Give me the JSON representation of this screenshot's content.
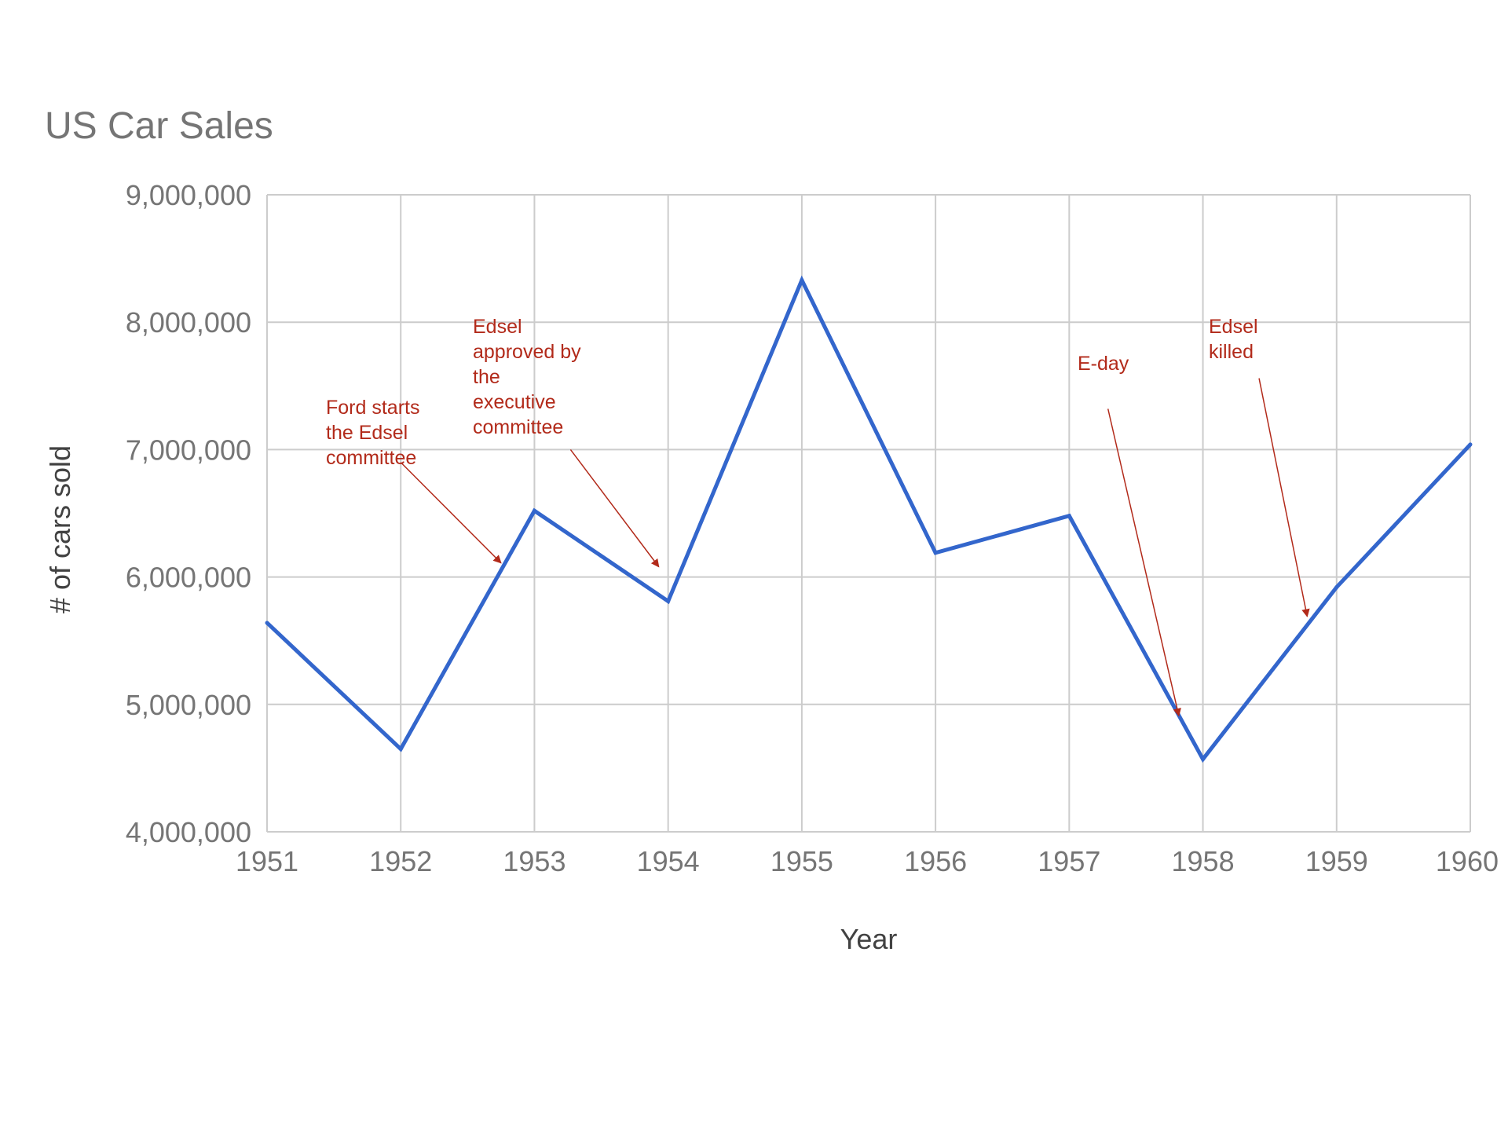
{
  "chart_data": {
    "type": "line",
    "title": "US Car Sales",
    "xlabel": "Year",
    "ylabel": "# of cars sold",
    "x": [
      1951,
      1952,
      1953,
      1954,
      1955,
      1956,
      1957,
      1958,
      1959,
      1960
    ],
    "x_tick_labels": [
      "1951",
      "1952",
      "1953",
      "1954",
      "1955",
      "1956",
      "1957",
      "1958",
      "1959",
      "1960"
    ],
    "series": [
      {
        "values": [
          5640000,
          4650000,
          6520000,
          5810000,
          8330000,
          6190000,
          6480000,
          4570000,
          5920000,
          7040000
        ]
      }
    ],
    "ylim": [
      4000000,
      9000000
    ],
    "xlim": [
      1951,
      1960
    ],
    "y_ticks": [
      4000000,
      5000000,
      6000000,
      7000000,
      8000000,
      9000000
    ],
    "y_tick_labels": [
      "4,000,000",
      "5,000,000",
      "6,000,000",
      "7,000,000",
      "8,000,000",
      "9,000,000"
    ],
    "grid": true,
    "legend": "none",
    "colors": {
      "series": "#3366cc",
      "annotation": "#b22a1a",
      "grid": "#cccccc",
      "tick_text": "#757575",
      "axis_title_text": "#424242"
    },
    "annotations": [
      {
        "lines": [
          "Ford starts",
          "the Edsel",
          "committee"
        ],
        "arrow_from_x": 1952.0,
        "arrow_from_y": 6900000,
        "arrow_to_x": 1952.75,
        "arrow_to_y": 6110000
      },
      {
        "lines": [
          "Edsel",
          "approved by",
          "the",
          "executive",
          "committee"
        ],
        "arrow_from_x": 1953.27,
        "arrow_from_y": 7000000,
        "arrow_to_x": 1953.93,
        "arrow_to_y": 6080000
      },
      {
        "lines": [
          "E-day"
        ],
        "arrow_from_x": 1957.29,
        "arrow_from_y": 7320000,
        "arrow_to_x": 1957.82,
        "arrow_to_y": 4910000
      },
      {
        "lines": [
          "Edsel",
          "killed"
        ],
        "arrow_from_x": 1958.42,
        "arrow_from_y": 7560000,
        "arrow_to_x": 1958.78,
        "arrow_to_y": 5690000
      }
    ]
  }
}
